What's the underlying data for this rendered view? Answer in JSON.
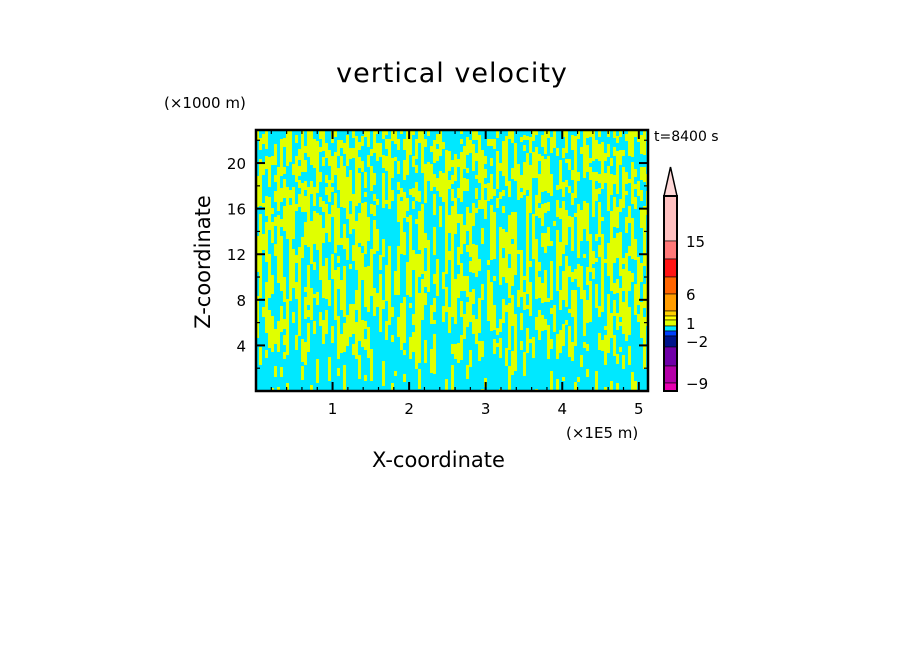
{
  "chart_data": {
    "type": "heatmap",
    "title": "vertical velocity",
    "xlabel": "X-coordinate",
    "ylabel": "Z-coordinate",
    "x_unit": "(×1E5 m)",
    "y_unit": "(×1000 m)",
    "time_label": "t=8400 s",
    "xlim": [
      0,
      5.12
    ],
    "ylim": [
      0,
      22.9
    ],
    "x_ticks": [
      1,
      2,
      3,
      4,
      5
    ],
    "y_ticks": [
      4,
      8,
      12,
      16,
      20
    ],
    "field_description_colors": {
      "dominant_low": "#00e8ff",
      "dominant_high": "#e0ff00"
    },
    "colorbar": {
      "extend": "max",
      "arrow_color": "#ffd8d8",
      "colors_top_to_bottom": [
        "#ffc0c0",
        "#ff7878",
        "#ff1414",
        "#ff6400",
        "#ff9c00",
        "#ffd000",
        "#ffff00",
        "#e0ff00",
        "#00e8ff",
        "#0040ff",
        "#00148c",
        "#7000a8",
        "#b400a8",
        "#e800b0"
      ],
      "tick_labels": [
        "15",
        "6",
        "1",
        "−2",
        "−9"
      ]
    }
  }
}
